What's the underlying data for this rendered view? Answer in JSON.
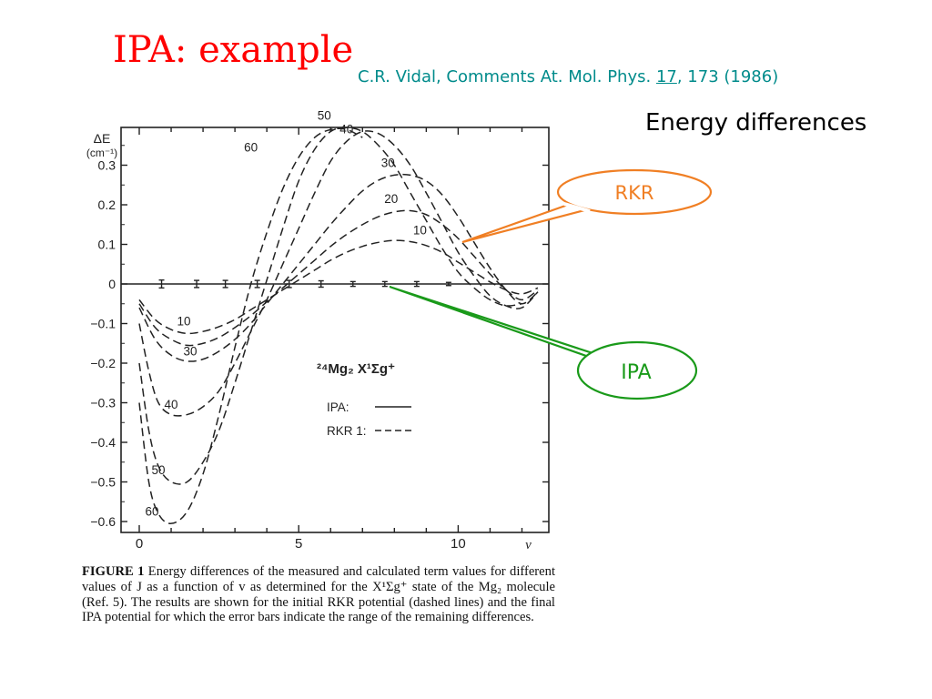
{
  "slide": {
    "title": "IPA: example",
    "reference": {
      "authors": "C.R. Vidal, Comments At. Mol. Phys. ",
      "volume": "17",
      "rest": ", 173 (1986)"
    },
    "subtitle": "Energy differences"
  },
  "callouts": [
    {
      "label": "RKR",
      "color": "#f07f24"
    },
    {
      "label": "IPA",
      "color": "#1a9a1a"
    }
  ],
  "caption": {
    "label": "FIGURE 1",
    "text": " Energy differences of the measured and calculated term values for different values of J as a function of v as determined for the X¹Σg⁺ state of the Mg₂ molecule (Ref. 5). The results are shown for the initial RKR potential (dashed lines) and the final IPA potential for which the error bars indicate the range of the remaining differences."
  },
  "chart_data": {
    "type": "line",
    "ylabel": "ΔE",
    "yunit": "(cm⁻¹)",
    "xlabel": "v",
    "xlim": [
      0,
      12.5
    ],
    "ylim": [
      -0.6,
      0.4
    ],
    "xticks": [
      "0",
      "5",
      "10"
    ],
    "yticks": [
      "0.3",
      "0.2",
      "0.1",
      "0",
      "-0.1",
      "-0.2",
      "-0.3",
      "-0.4",
      "-0.5",
      "-0.6"
    ],
    "ytick_values": [
      0.3,
      0.2,
      0.1,
      0,
      -0.1,
      -0.2,
      -0.3,
      -0.4,
      -0.5,
      -0.6
    ],
    "xtick_values": [
      0,
      5,
      10
    ],
    "molecule_label": "²⁴Mg₂ X¹Σg⁺",
    "legend": [
      {
        "label": "IPA:",
        "style": "solid"
      },
      {
        "label": "RKR 1:",
        "style": "dashed"
      }
    ],
    "series": [
      {
        "name": "10",
        "style": "dashed",
        "points": [
          [
            0,
            -0.04
          ],
          [
            0.5,
            -0.09
          ],
          [
            1,
            -0.115
          ],
          [
            1.5,
            -0.125
          ],
          [
            2,
            -0.12
          ],
          [
            2.5,
            -0.108
          ],
          [
            3,
            -0.09
          ],
          [
            3.5,
            -0.065
          ],
          [
            4,
            -0.04
          ],
          [
            4.5,
            -0.015
          ],
          [
            5,
            0.01
          ],
          [
            5.5,
            0.035
          ],
          [
            6,
            0.06
          ],
          [
            6.5,
            0.08
          ],
          [
            7,
            0.095
          ],
          [
            7.5,
            0.105
          ],
          [
            8,
            0.11
          ],
          [
            8.5,
            0.107
          ],
          [
            9,
            0.097
          ],
          [
            9.5,
            0.08
          ],
          [
            10,
            0.055
          ],
          [
            10.5,
            0.03
          ],
          [
            11,
            0.005
          ],
          [
            11.5,
            -0.015
          ],
          [
            12,
            -0.025
          ],
          [
            12.5,
            -0.01
          ]
        ]
      },
      {
        "name": "20",
        "style": "dashed",
        "points": [
          [
            0,
            -0.05
          ],
          [
            0.5,
            -0.11
          ],
          [
            1,
            -0.14
          ],
          [
            1.5,
            -0.155
          ],
          [
            2,
            -0.15
          ],
          [
            2.5,
            -0.135
          ],
          [
            3,
            -0.11
          ],
          [
            3.5,
            -0.08
          ],
          [
            4,
            -0.045
          ],
          [
            4.5,
            -0.01
          ],
          [
            5,
            0.025
          ],
          [
            5.5,
            0.06
          ],
          [
            6,
            0.095
          ],
          [
            6.5,
            0.125
          ],
          [
            7,
            0.15
          ],
          [
            7.5,
            0.17
          ],
          [
            8,
            0.182
          ],
          [
            8.5,
            0.185
          ],
          [
            9,
            0.175
          ],
          [
            9.5,
            0.15
          ],
          [
            10,
            0.115
          ],
          [
            10.5,
            0.07
          ],
          [
            11,
            0.025
          ],
          [
            11.5,
            -0.015
          ],
          [
            12,
            -0.04
          ],
          [
            12.5,
            -0.015
          ]
        ]
      },
      {
        "name": "30",
        "style": "dashed",
        "points": [
          [
            0,
            -0.06
          ],
          [
            0.5,
            -0.14
          ],
          [
            1,
            -0.18
          ],
          [
            1.5,
            -0.195
          ],
          [
            2,
            -0.19
          ],
          [
            2.5,
            -0.17
          ],
          [
            3,
            -0.14
          ],
          [
            3.5,
            -0.1
          ],
          [
            4,
            -0.05
          ],
          [
            4.5,
            0.0
          ],
          [
            5,
            0.05
          ],
          [
            5.5,
            0.1
          ],
          [
            6,
            0.15
          ],
          [
            6.5,
            0.195
          ],
          [
            7,
            0.235
          ],
          [
            7.5,
            0.262
          ],
          [
            8,
            0.275
          ],
          [
            8.5,
            0.275
          ],
          [
            9,
            0.26
          ],
          [
            9.5,
            0.225
          ],
          [
            10,
            0.17
          ],
          [
            10.5,
            0.105
          ],
          [
            11,
            0.04
          ],
          [
            11.5,
            -0.015
          ],
          [
            12,
            -0.05
          ],
          [
            12.5,
            -0.02
          ]
        ]
      },
      {
        "name": "40",
        "style": "dashed",
        "points": [
          [
            0,
            -0.1
          ],
          [
            0.3,
            -0.22
          ],
          [
            0.6,
            -0.3
          ],
          [
            1,
            -0.33
          ],
          [
            1.5,
            -0.33
          ],
          [
            2,
            -0.31
          ],
          [
            2.5,
            -0.27
          ],
          [
            3,
            -0.2
          ],
          [
            3.5,
            -0.12
          ],
          [
            4,
            -0.04
          ],
          [
            4.5,
            0.05
          ],
          [
            5,
            0.14
          ],
          [
            5.5,
            0.23
          ],
          [
            6,
            0.31
          ],
          [
            6.5,
            0.36
          ],
          [
            7,
            0.385
          ],
          [
            7.5,
            0.38
          ],
          [
            8,
            0.35
          ],
          [
            8.5,
            0.3
          ],
          [
            9,
            0.23
          ],
          [
            9.5,
            0.155
          ],
          [
            10,
            0.08
          ],
          [
            10.5,
            0.02
          ],
          [
            11,
            -0.03
          ],
          [
            11.5,
            -0.055
          ],
          [
            12,
            -0.06
          ],
          [
            12.5,
            -0.02
          ]
        ]
      },
      {
        "name": "50",
        "style": "dashed",
        "points": [
          [
            0,
            -0.2
          ],
          [
            0.3,
            -0.37
          ],
          [
            0.6,
            -0.46
          ],
          [
            1,
            -0.5
          ],
          [
            1.5,
            -0.5
          ],
          [
            2,
            -0.45
          ],
          [
            2.5,
            -0.37
          ],
          [
            3,
            -0.25
          ],
          [
            3.5,
            -0.12
          ],
          [
            4,
            0.01
          ],
          [
            4.5,
            0.14
          ],
          [
            5,
            0.26
          ],
          [
            5.5,
            0.34
          ],
          [
            6,
            0.385
          ],
          [
            6.5,
            0.395
          ],
          [
            7,
            0.385
          ],
          [
            7.5,
            0.35
          ],
          [
            8,
            0.3
          ],
          [
            8.5,
            0.23
          ],
          [
            9,
            0.16
          ],
          [
            9.5,
            0.09
          ],
          [
            10,
            0.03
          ],
          [
            10.5,
            -0.01
          ],
          [
            11,
            -0.04
          ],
          [
            11.5,
            -0.055
          ],
          [
            12,
            -0.05
          ]
        ]
      },
      {
        "name": "60",
        "style": "dashed",
        "points": [
          [
            0,
            -0.3
          ],
          [
            0.3,
            -0.5
          ],
          [
            0.6,
            -0.58
          ],
          [
            1,
            -0.605
          ],
          [
            1.5,
            -0.575
          ],
          [
            2,
            -0.48
          ],
          [
            2.5,
            -0.33
          ],
          [
            3,
            -0.16
          ],
          [
            3.5,
            0.0
          ],
          [
            4,
            0.13
          ],
          [
            4.5,
            0.24
          ],
          [
            5,
            0.32
          ],
          [
            5.5,
            0.37
          ],
          [
            6,
            0.39
          ],
          [
            6.5,
            0.39
          ],
          [
            7,
            0.37
          ]
        ]
      }
    ],
    "ipa_errorbars": [
      {
        "x": 0.7,
        "y": 0,
        "err": 0.01
      },
      {
        "x": 1.8,
        "y": 0,
        "err": 0.009
      },
      {
        "x": 2.7,
        "y": 0,
        "err": 0.009
      },
      {
        "x": 3.7,
        "y": 0,
        "err": 0.009
      },
      {
        "x": 4.7,
        "y": 0,
        "err": 0.009
      },
      {
        "x": 5.7,
        "y": 0,
        "err": 0.008
      },
      {
        "x": 6.7,
        "y": 0,
        "err": 0.006
      },
      {
        "x": 7.7,
        "y": 0,
        "err": 0.006
      },
      {
        "x": 8.7,
        "y": 0,
        "err": 0.006
      },
      {
        "x": 9.7,
        "y": 0,
        "err": 0.004
      }
    ]
  }
}
